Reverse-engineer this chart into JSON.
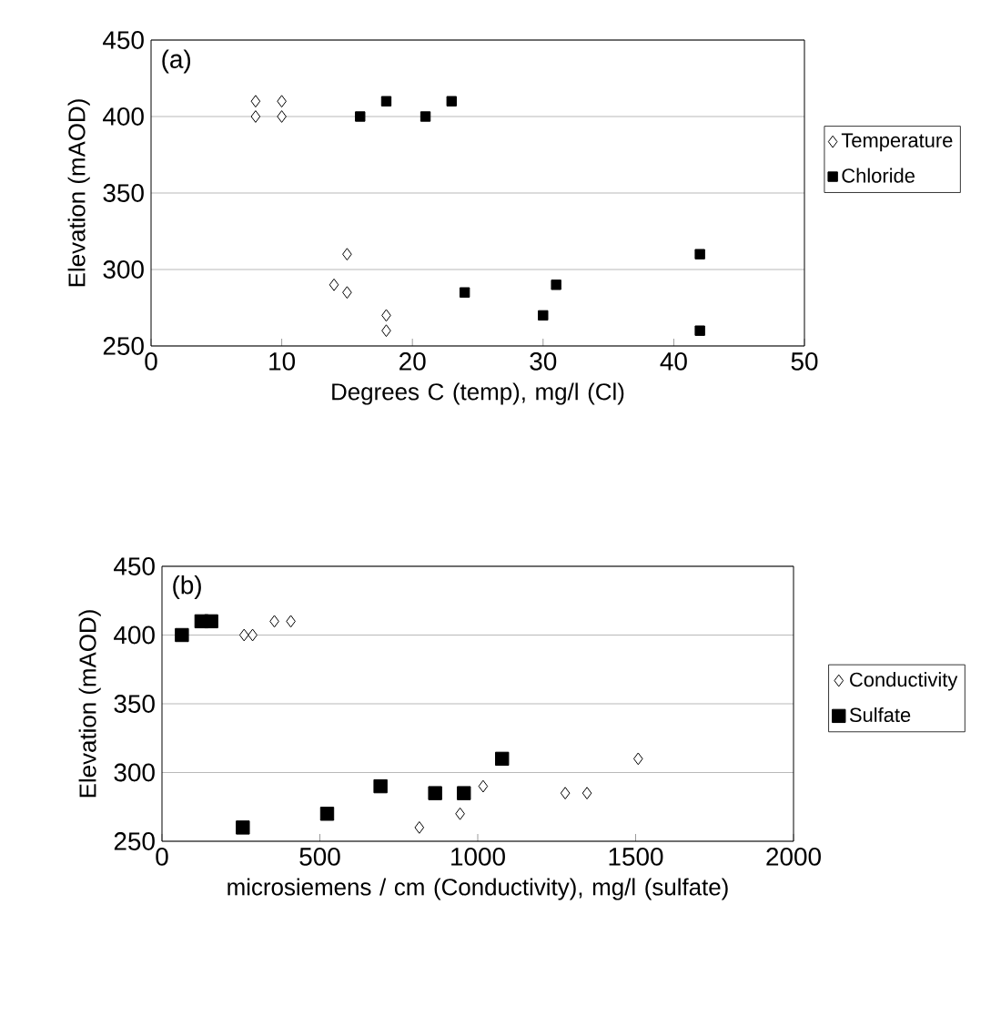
{
  "chart_data": [
    {
      "type": "scatter",
      "xlabel": "Degrees C (temp), mg/l (Cl)",
      "ylabel": "Elevation (mAOD)",
      "annotations": [
        "(a)"
      ],
      "xlim": [
        0,
        50
      ],
      "ylim": [
        250,
        450
      ],
      "xticks": [
        0,
        10,
        20,
        30,
        40,
        50
      ],
      "yticks": [
        250,
        300,
        350,
        400,
        450
      ],
      "grid": "y",
      "legend": "right",
      "series": [
        {
          "name": "Temperature",
          "color": "#000000",
          "marker": "diamond",
          "x": [
            8,
            8,
            10,
            10,
            15,
            14,
            15,
            18,
            18
          ],
          "values": [
            410,
            400,
            410,
            400,
            310,
            290,
            285,
            270,
            260
          ]
        },
        {
          "name": "Chloride",
          "color": "#000000",
          "marker": "square",
          "x": [
            16,
            18,
            21,
            23,
            24,
            30,
            31,
            42,
            42
          ],
          "values": [
            400,
            410,
            400,
            410,
            285,
            270,
            290,
            310,
            260
          ]
        }
      ]
    },
    {
      "type": "scatter",
      "xlabel": "microsiemens / cm (Conductivity), mg/l (sulfate)",
      "ylabel": "Elevation (mAOD)",
      "annotations": [
        "(b)"
      ],
      "xlim": [
        0,
        2000
      ],
      "ylim": [
        250,
        450
      ],
      "xticks": [
        0,
        500,
        1000,
        1500,
        2000
      ],
      "yticks": [
        250,
        300,
        350,
        400,
        450
      ],
      "grid": "y",
      "legend": "right",
      "series": [
        {
          "name": "Conductivity",
          "color": "#000000",
          "marker": "diamond",
          "x": [
            260,
            287,
            356,
            408,
            815,
            944,
            1017,
            1277,
            1346,
            1508
          ],
          "values": [
            400,
            400,
            410,
            410,
            260,
            270,
            290,
            285,
            285,
            310
          ]
        },
        {
          "name": "Sulfate",
          "color": "#000000",
          "marker": "square",
          "x": [
            63,
            125,
            156,
            256,
            523,
            692,
            865,
            956,
            1077
          ],
          "values": [
            400,
            410,
            410,
            260,
            270,
            290,
            285,
            285,
            310
          ]
        }
      ]
    }
  ]
}
